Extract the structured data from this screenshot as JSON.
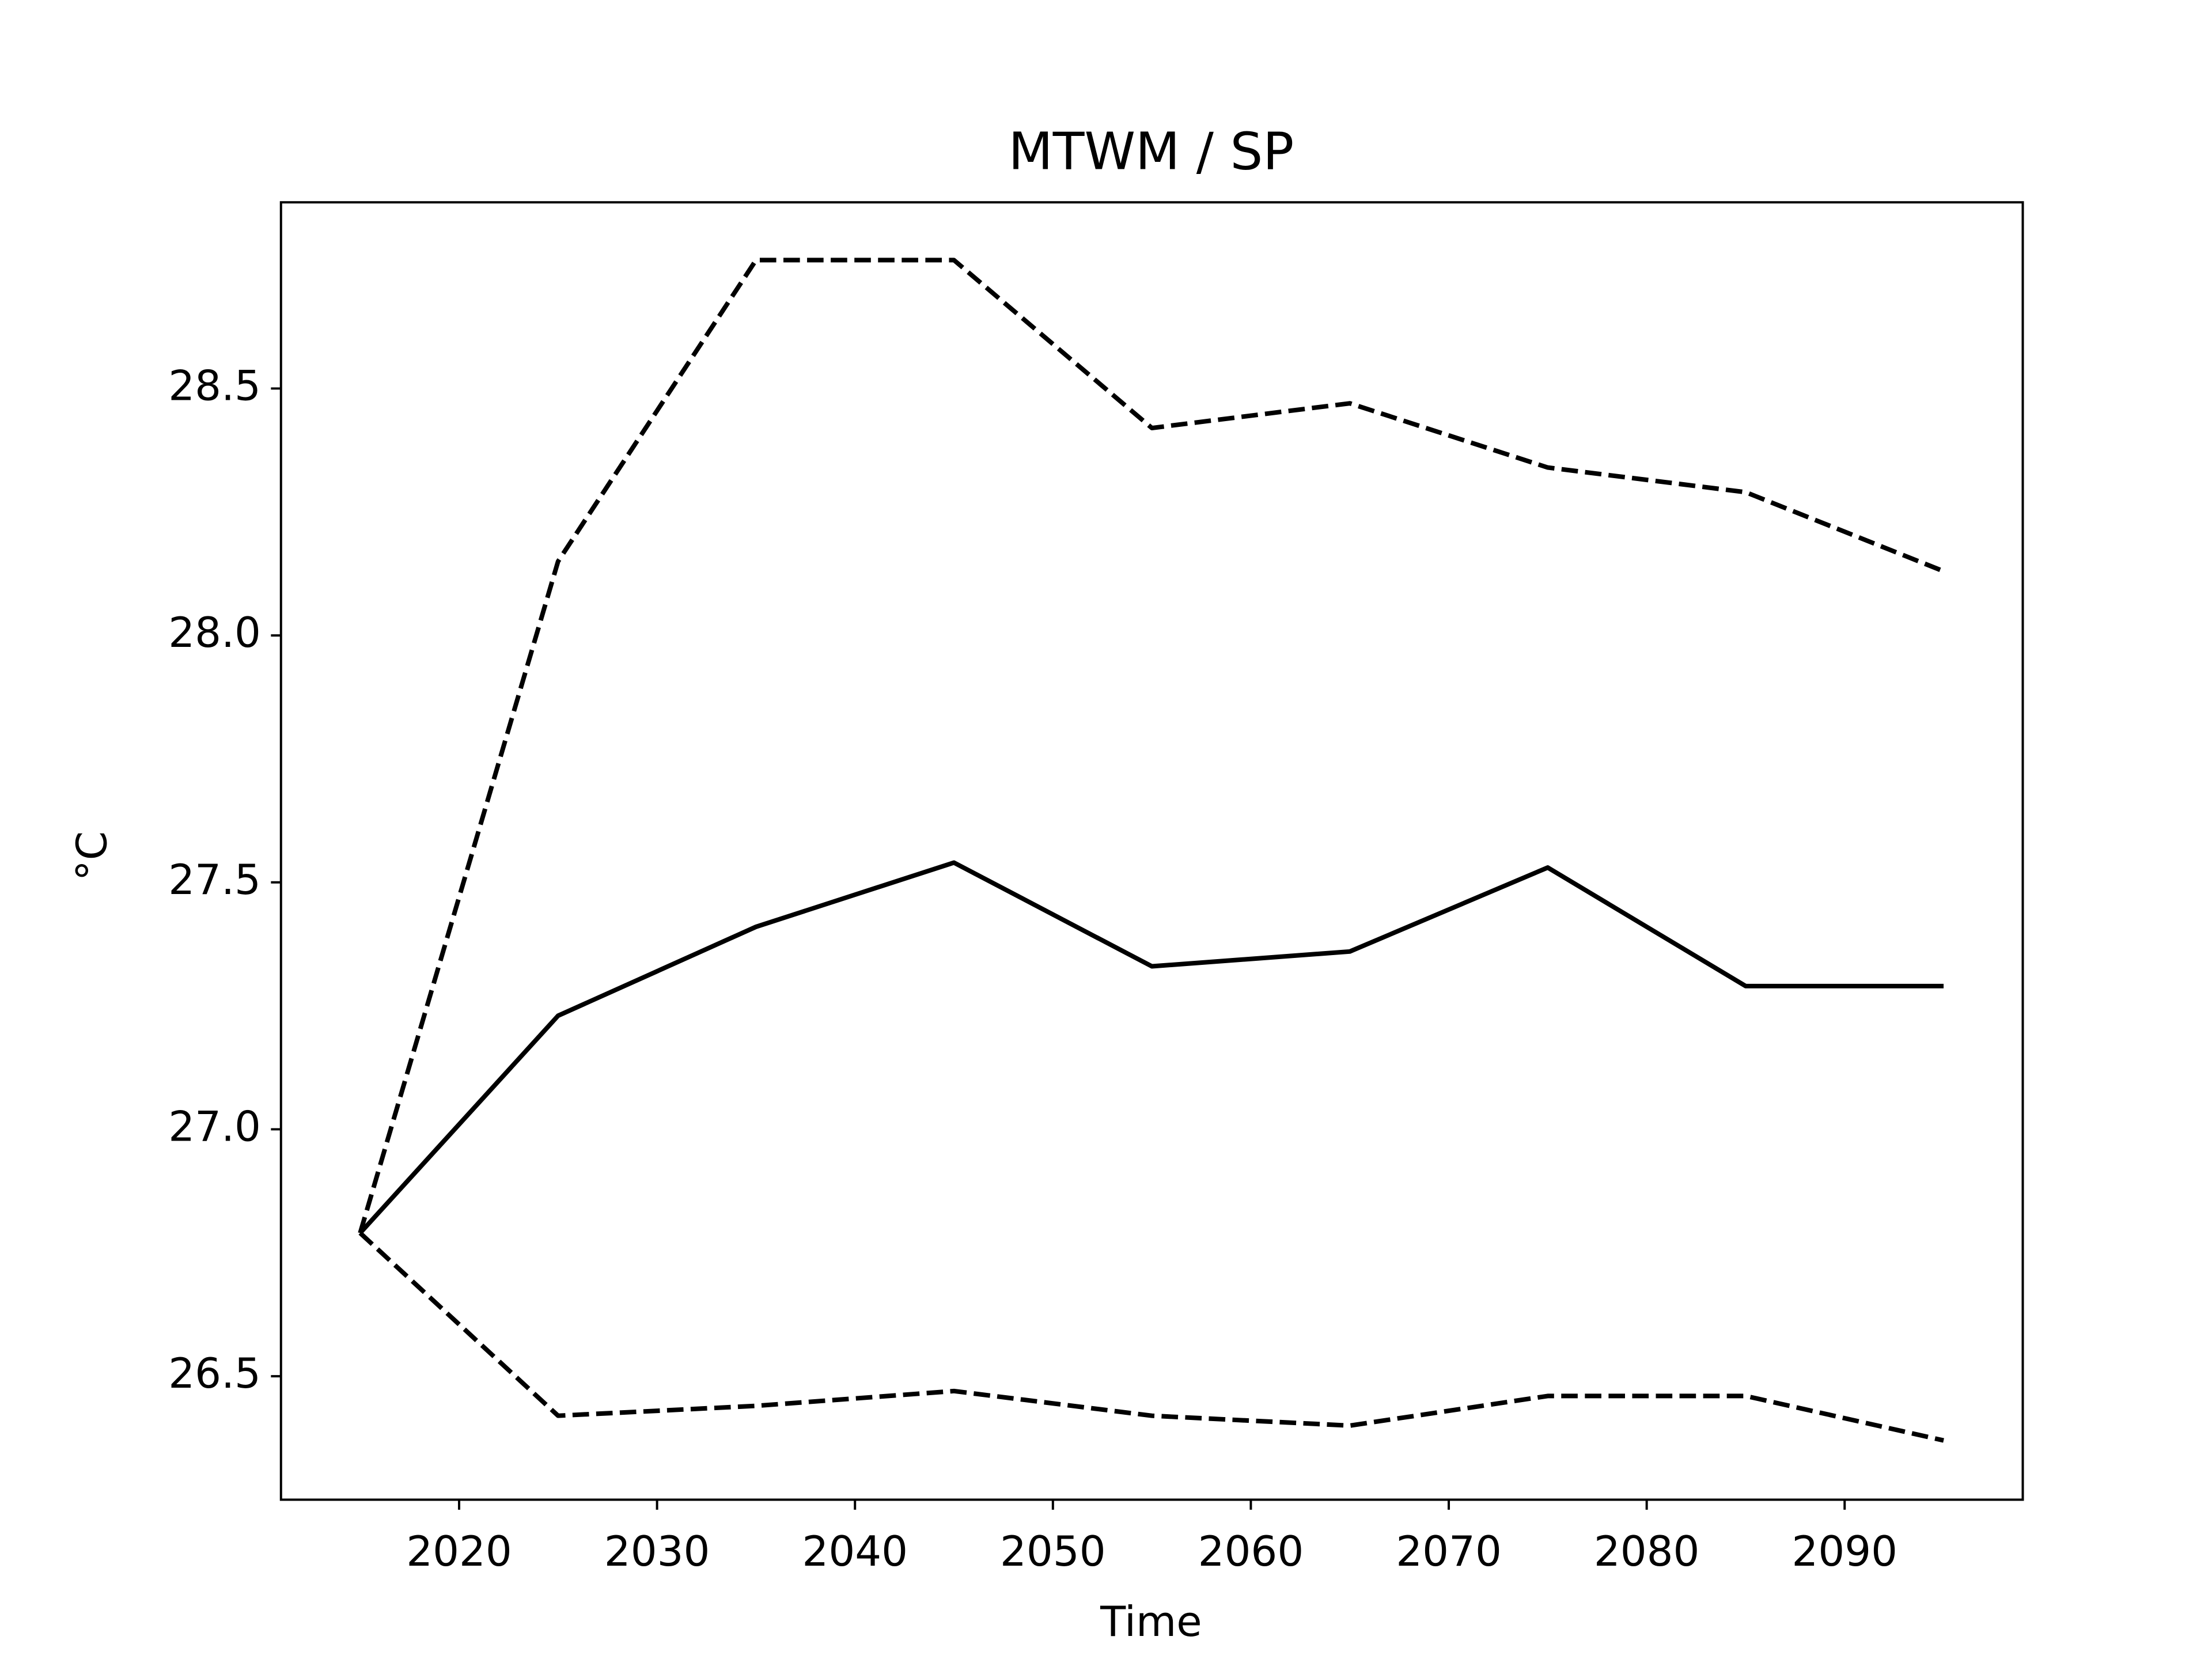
{
  "chart_data": {
    "type": "line",
    "title": "MTWM / SP",
    "x_label": "Time",
    "y_label": "°C",
    "x": [
      2015,
      2025,
      2035,
      2045,
      2055,
      2065,
      2075,
      2085,
      2095
    ],
    "series": [
      {
        "color": "#000000",
        "dashed": false,
        "values": [
          26.79,
          27.23,
          27.41,
          27.54,
          27.33,
          27.36,
          27.53,
          27.29,
          27.29
        ]
      },
      {
        "color": "#000000",
        "dashed": true,
        "values": [
          26.79,
          28.15,
          28.76,
          28.76,
          28.42,
          28.47,
          28.34,
          28.29,
          28.13
        ]
      },
      {
        "color": "#000000",
        "dashed": true,
        "values": [
          26.79,
          26.42,
          26.44,
          26.47,
          26.42,
          26.4,
          26.46,
          26.46,
          26.37
        ]
      }
    ],
    "xlim": [
      2011,
      2099
    ],
    "xticks": [
      2020,
      2030,
      2040,
      2050,
      2060,
      2070,
      2080,
      2090
    ],
    "ylim": [
      26.25,
      28.877
    ],
    "yticks": [
      26.5,
      {
        "value": 27,
        "label": "27.0"
      },
      27.5,
      {
        "value": 28,
        "label": "28.0"
      },
      28.5
    ],
    "grid": false
  }
}
